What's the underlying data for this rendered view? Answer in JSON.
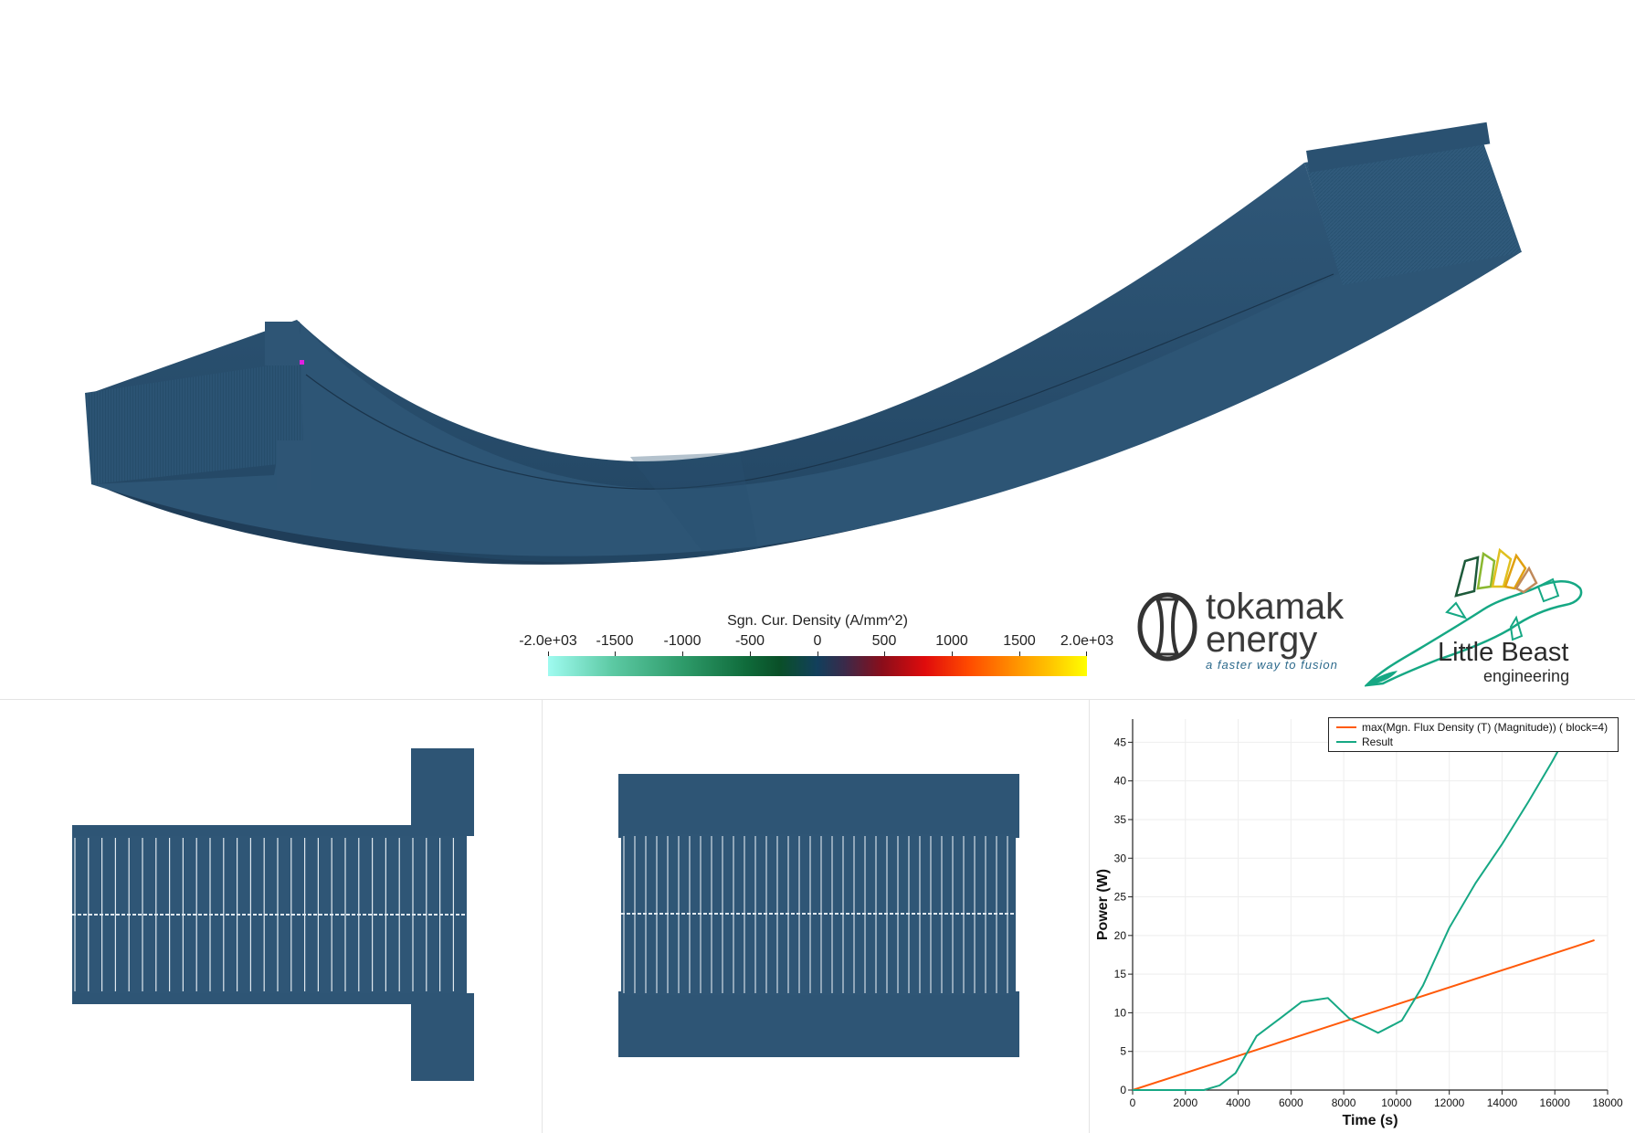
{
  "colorbar": {
    "title": "Sgn. Cur. Density (A/mm^2)",
    "ticks": [
      "-2.0e+03",
      "-1500",
      "-1000",
      "-500",
      "0",
      "500",
      "1000",
      "1500",
      "2.0e+03"
    ]
  },
  "logos": {
    "tokamak_line1": "tokamak",
    "tokamak_line2": "energy",
    "tokamak_tagline": "a faster way to fusion",
    "little_beast_line1": "Little Beast",
    "little_beast_line2": "engineering"
  },
  "colors": {
    "model_surface": "#2e5575",
    "model_dark": "#1e3a54",
    "series_max_flux": "#ff5a0a",
    "series_result": "#16a884"
  },
  "chart_data": {
    "type": "line",
    "xlabel": "Time (s)",
    "ylabel": "Power (W)",
    "xlim": [
      0,
      18000
    ],
    "ylim": [
      0,
      48
    ],
    "x_ticks": [
      "0",
      "2000",
      "4000",
      "6000",
      "8000",
      "10000",
      "12000",
      "14000",
      "16000",
      "18000"
    ],
    "y_ticks": [
      "0",
      "5",
      "10",
      "15",
      "20",
      "25",
      "30",
      "35",
      "40",
      "45"
    ],
    "legend_position": "top-right",
    "series": [
      {
        "name": "max(Mgn. Flux Density (T) (Magnitude)) ( block=4)",
        "color": "#ff5a0a",
        "points": [
          [
            0,
            0
          ],
          [
            16800,
            18.6
          ],
          [
            17500,
            19.4
          ]
        ]
      },
      {
        "name": "Result",
        "color": "#16a884",
        "points": [
          [
            0,
            0
          ],
          [
            2700,
            0
          ],
          [
            3300,
            0.6
          ],
          [
            3900,
            2.2
          ],
          [
            4700,
            7
          ],
          [
            5600,
            9.3
          ],
          [
            6400,
            11.4
          ],
          [
            7400,
            11.9
          ],
          [
            8200,
            9.3
          ],
          [
            9300,
            7.4
          ],
          [
            10200,
            9
          ],
          [
            11000,
            13.5
          ],
          [
            12000,
            21
          ],
          [
            13000,
            26.8
          ],
          [
            14000,
            31.8
          ],
          [
            15000,
            37.3
          ],
          [
            15900,
            42.5
          ],
          [
            16300,
            45
          ]
        ]
      }
    ]
  }
}
